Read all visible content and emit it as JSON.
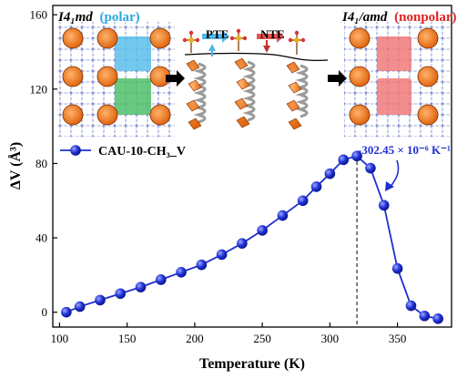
{
  "chart_data": {
    "type": "line",
    "xlabel": "Temperature (K)",
    "ylabel": "ΔV (Å³)",
    "xlim": [
      95,
      390
    ],
    "ylim": [
      -8,
      165
    ],
    "xticks": [
      100,
      150,
      200,
      250,
      300,
      350
    ],
    "yticks": [
      0,
      40,
      80,
      120,
      160
    ],
    "series": [
      {
        "name": "CAU-10-CH₃_V",
        "color": "#1f2fd0",
        "x": [
          105,
          115,
          130,
          145,
          160,
          175,
          190,
          205,
          220,
          235,
          250,
          265,
          280,
          290,
          300,
          310,
          320,
          330,
          340,
          350,
          360,
          370,
          380
        ],
        "y": [
          0,
          3,
          6.5,
          10,
          13.5,
          17.5,
          21.5,
          25.5,
          31,
          37,
          44,
          52,
          60,
          67.5,
          74.5,
          82,
          84,
          77.5,
          57.5,
          23.5,
          3.5,
          -2,
          -3.5
        ]
      }
    ],
    "legend_position": "top-left",
    "annotations": {
      "slope_label": "-302.45 × 10⁻⁶ K⁻¹",
      "dashed_line_x": 320,
      "left_phase_italic": "I4₁md",
      "left_phase_paren": "(polar)",
      "right_phase_italic": "I4₁/amd",
      "right_phase_paren": "(nonpolar)",
      "pte_label": "PTE",
      "nte_label": "NTE"
    }
  }
}
